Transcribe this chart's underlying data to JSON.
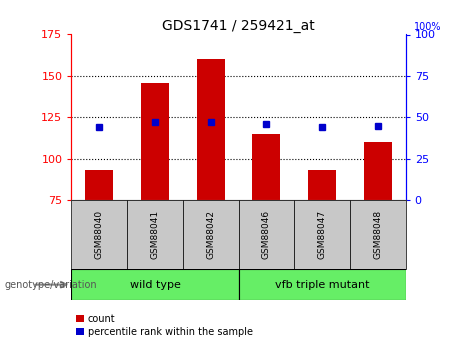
{
  "title": "GDS1741 / 259421_at",
  "samples": [
    "GSM88040",
    "GSM88041",
    "GSM88042",
    "GSM88046",
    "GSM88047",
    "GSM88048"
  ],
  "count_values": [
    93,
    146,
    160,
    115,
    93,
    110
  ],
  "percentile_values": [
    44,
    47,
    47,
    46,
    44,
    45
  ],
  "count_base": 75,
  "ylim_left": [
    75,
    175
  ],
  "ylim_right": [
    0,
    100
  ],
  "yticks_left": [
    75,
    100,
    125,
    150,
    175
  ],
  "yticks_right": [
    0,
    25,
    50,
    75,
    100
  ],
  "bar_color": "#cc0000",
  "dot_color": "#0000cc",
  "group1_label": "wild type",
  "group2_label": "vfb triple mutant",
  "group_bg_color": "#66ee66",
  "sample_bg_color": "#c8c8c8",
  "legend_count_label": "count",
  "legend_pct_label": "percentile rank within the sample",
  "genotype_label": "genotype/variation"
}
